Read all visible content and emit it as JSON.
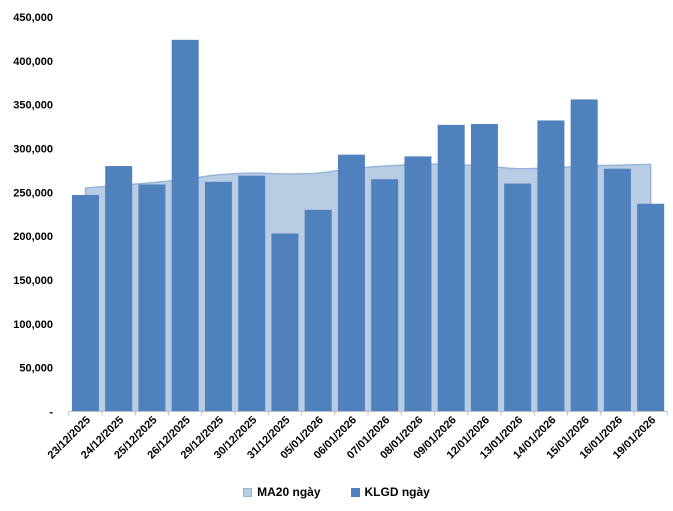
{
  "chart_data": {
    "type": "combo-bar-area",
    "title": "",
    "categories": [
      "23/12/2025",
      "24/12/2025",
      "25/12/2025",
      "26/12/2025",
      "29/12/2025",
      "30/12/2025",
      "31/12/2025",
      "05/01/2026",
      "06/01/2026",
      "07/01/2026",
      "08/01/2026",
      "09/01/2026",
      "12/01/2026",
      "13/01/2026",
      "14/01/2026",
      "15/01/2026",
      "16/01/2026",
      "19/01/2026"
    ],
    "series": [
      {
        "name": "MA20 ngày",
        "type": "area",
        "color": "#B8CCE4",
        "border_color": "#95B3D7",
        "values": [
          255000,
          258000,
          261000,
          265000,
          270000,
          272000,
          271000,
          272000,
          277000,
          280000,
          282000,
          282000,
          280000,
          277000,
          278000,
          280000,
          281000,
          282000
        ]
      },
      {
        "name": "KLGD ngày",
        "type": "bar",
        "color": "#4F81BD",
        "values": [
          247000,
          280000,
          259000,
          424000,
          262000,
          269000,
          203000,
          230000,
          293000,
          265000,
          291000,
          327000,
          328000,
          260000,
          332000,
          356000,
          277000,
          237000
        ]
      }
    ],
    "y_axis": {
      "min": 0,
      "max": 450000,
      "step": 50000,
      "tick_labels_top_to_bottom": [
        "450,000",
        "400,000",
        "350,000",
        "300,000",
        "250,000",
        "200,000",
        "150,000",
        "100,000",
        "50,000",
        "-"
      ]
    },
    "x_axis": {
      "label_rotation_deg": 45
    },
    "grid": false,
    "legend_position": "bottom",
    "axis_color": "#BFBFBF",
    "text_color": "#000000",
    "background": "#FFFFFF"
  }
}
